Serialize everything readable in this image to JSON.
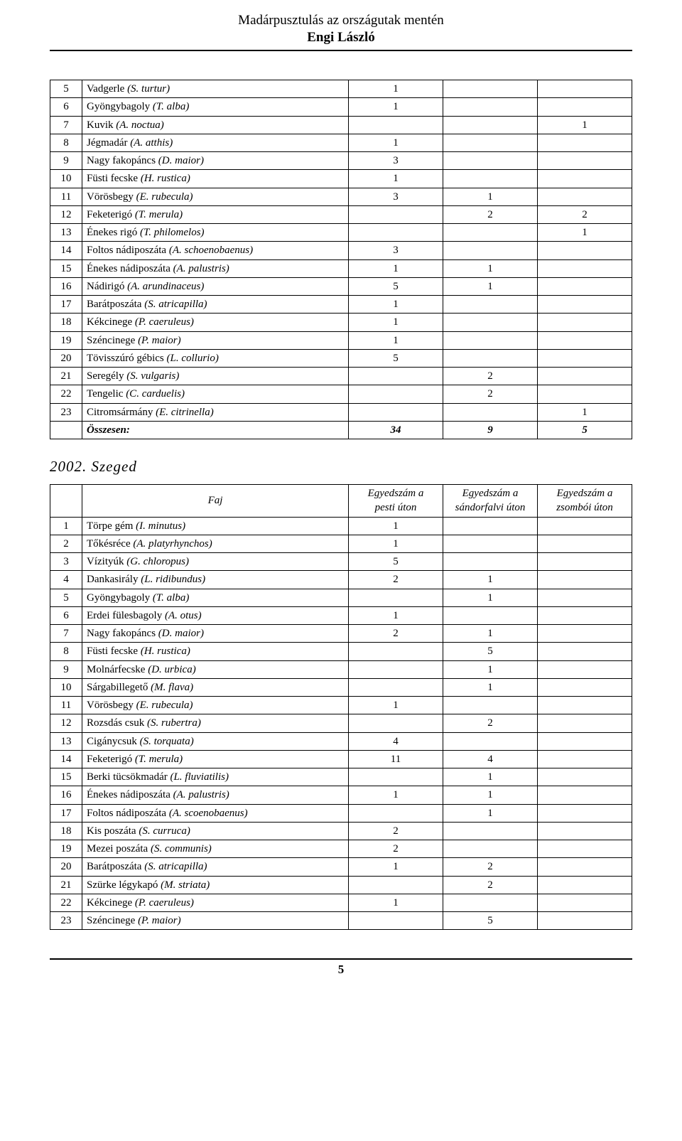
{
  "header": {
    "title": "Madárpusztulás az országutak mentén",
    "author": "Engi László"
  },
  "table1": {
    "rows": [
      {
        "n": "5",
        "name_plain": "Vadgerle ",
        "name_italic": "(S. turtur)",
        "c1": "1",
        "c2": "",
        "c3": ""
      },
      {
        "n": "6",
        "name_plain": "Gyöngybagoly ",
        "name_italic": "(T. alba)",
        "c1": "1",
        "c2": "",
        "c3": ""
      },
      {
        "n": "7",
        "name_plain": "Kuvik ",
        "name_italic": "(A. noctua)",
        "c1": "",
        "c2": "",
        "c3": "1"
      },
      {
        "n": "8",
        "name_plain": "Jégmadár ",
        "name_italic": "(A. atthis)",
        "c1": "1",
        "c2": "",
        "c3": ""
      },
      {
        "n": "9",
        "name_plain": "Nagy fakopáncs ",
        "name_italic": "(D. maior)",
        "c1": "3",
        "c2": "",
        "c3": ""
      },
      {
        "n": "10",
        "name_plain": "Füsti fecske ",
        "name_italic": "(H. rustica)",
        "c1": "1",
        "c2": "",
        "c3": ""
      },
      {
        "n": "11",
        "name_plain": "Vörösbegy ",
        "name_italic": "(E. rubecula)",
        "c1": "3",
        "c2": "1",
        "c3": ""
      },
      {
        "n": "12",
        "name_plain": "Feketerigó ",
        "name_italic": "(T. merula)",
        "c1": "",
        "c2": "2",
        "c3": "2"
      },
      {
        "n": "13",
        "name_plain": "Énekes rigó ",
        "name_italic": "(T. philomelos)",
        "c1": "",
        "c2": "",
        "c3": "1"
      },
      {
        "n": "14",
        "name_plain": "Foltos nádiposzáta ",
        "name_italic": "(A. schoenobaenus)",
        "c1": "3",
        "c2": "",
        "c3": ""
      },
      {
        "n": "15",
        "name_plain": "Énekes nádiposzáta ",
        "name_italic": "(A. palustris)",
        "c1": "1",
        "c2": "1",
        "c3": ""
      },
      {
        "n": "16",
        "name_plain": "Nádirigó ",
        "name_italic": "(A. arundinaceus)",
        "c1": "5",
        "c2": "1",
        "c3": ""
      },
      {
        "n": "17",
        "name_plain": "Barátposzáta ",
        "name_italic": "(S. atricapilla)",
        "c1": "1",
        "c2": "",
        "c3": ""
      },
      {
        "n": "18",
        "name_plain": "Kékcinege ",
        "name_italic": "(P. caeruleus)",
        "c1": "1",
        "c2": "",
        "c3": ""
      },
      {
        "n": "19",
        "name_plain": "Széncinege ",
        "name_italic": "(P. maior)",
        "c1": "1",
        "c2": "",
        "c3": ""
      },
      {
        "n": "20",
        "name_plain": "Tövisszúró gébics ",
        "name_italic": "(L. collurio)",
        "c1": "5",
        "c2": "",
        "c3": ""
      },
      {
        "n": "21",
        "name_plain": "Seregély ",
        "name_italic": "(S. vulgaris)",
        "c1": "",
        "c2": "2",
        "c3": ""
      },
      {
        "n": "22",
        "name_plain": "Tengelic ",
        "name_italic": "(C. carduelis)",
        "c1": "",
        "c2": "2",
        "c3": ""
      },
      {
        "n": "23",
        "name_plain": "Citromsármány ",
        "name_italic": "(E. citrinella)",
        "c1": "",
        "c2": "",
        "c3": "1"
      }
    ],
    "total": {
      "label": "Összesen:",
      "c1": "34",
      "c2": "9",
      "c3": "5"
    }
  },
  "section2": {
    "heading": "2002. Szeged",
    "columns": {
      "faj": "Faj",
      "h1a": "Egyedszám a",
      "h1b": "pesti úton",
      "h2a": "Egyedszám a",
      "h2b": "sándorfalvi úton",
      "h3a": "Egyedszám a",
      "h3b": "zsombói úton"
    },
    "rows": [
      {
        "n": "1",
        "name_plain": "Törpe gém ",
        "name_italic": "(I. minutus)",
        "c1": "1",
        "c2": "",
        "c3": ""
      },
      {
        "n": "2",
        "name_plain": "Tőkésréce ",
        "name_italic": "(A. platyrhynchos)",
        "c1": "1",
        "c2": "",
        "c3": ""
      },
      {
        "n": "3",
        "name_plain": "Vízityúk ",
        "name_italic": "(G. chloropus)",
        "c1": "5",
        "c2": "",
        "c3": ""
      },
      {
        "n": "4",
        "name_plain": "Dankasirály ",
        "name_italic": "(L. ridibundus)",
        "c1": "2",
        "c2": "1",
        "c3": ""
      },
      {
        "n": "5",
        "name_plain": "Gyöngybagoly ",
        "name_italic": "(T. alba)",
        "c1": "",
        "c2": "1",
        "c3": ""
      },
      {
        "n": "6",
        "name_plain": "Erdei fülesbagoly ",
        "name_italic": "(A. otus)",
        "c1": "1",
        "c2": "",
        "c3": ""
      },
      {
        "n": "7",
        "name_plain": "Nagy fakopáncs ",
        "name_italic": "(D. maior)",
        "c1": "2",
        "c2": "1",
        "c3": ""
      },
      {
        "n": "8",
        "name_plain": "Füsti fecske ",
        "name_italic": "(H. rustica)",
        "c1": "",
        "c2": "5",
        "c3": ""
      },
      {
        "n": "9",
        "name_plain": "Molnárfecske ",
        "name_italic": "(D. urbica)",
        "c1": "",
        "c2": "1",
        "c3": ""
      },
      {
        "n": "10",
        "name_plain": "Sárgabillegető ",
        "name_italic": "(M. flava)",
        "c1": "",
        "c2": "1",
        "c3": ""
      },
      {
        "n": "11",
        "name_plain": "Vörösbegy ",
        "name_italic": "(E. rubecula)",
        "c1": "1",
        "c2": "",
        "c3": ""
      },
      {
        "n": "12",
        "name_plain": "Rozsdás csuk ",
        "name_italic": "(S. rubertra)",
        "c1": "",
        "c2": "2",
        "c3": ""
      },
      {
        "n": "13",
        "name_plain": "Cigánycsuk ",
        "name_italic": "(S. torquata)",
        "c1": "4",
        "c2": "",
        "c3": ""
      },
      {
        "n": "14",
        "name_plain": "Feketerigó ",
        "name_italic": "(T. merula)",
        "c1": "11",
        "c2": "4",
        "c3": ""
      },
      {
        "n": "15",
        "name_plain": "Berki tücsökmadár ",
        "name_italic": "(L. fluviatilis)",
        "c1": "",
        "c2": "1",
        "c3": ""
      },
      {
        "n": "16",
        "name_plain": "Énekes nádiposzáta ",
        "name_italic": "(A. palustris)",
        "c1": "1",
        "c2": "1",
        "c3": ""
      },
      {
        "n": "17",
        "name_plain": "Foltos nádiposzáta ",
        "name_italic": "(A. scoenobaenus)",
        "c1": "",
        "c2": "1",
        "c3": ""
      },
      {
        "n": "18",
        "name_plain": "Kis poszáta ",
        "name_italic": "(S. curruca)",
        "c1": "2",
        "c2": "",
        "c3": ""
      },
      {
        "n": "19",
        "name_plain": "Mezei poszáta ",
        "name_italic": "(S. communis)",
        "c1": "2",
        "c2": "",
        "c3": ""
      },
      {
        "n": "20",
        "name_plain": "Barátposzáta ",
        "name_italic": "(S. atricapilla)",
        "c1": "1",
        "c2": "2",
        "c3": ""
      },
      {
        "n": "21",
        "name_plain": "Szürke légykapó ",
        "name_italic": "(M. striata)",
        "c1": "",
        "c2": "2",
        "c3": ""
      },
      {
        "n": "22",
        "name_plain": "Kékcinege ",
        "name_italic": "(P. caeruleus)",
        "c1": "1",
        "c2": "",
        "c3": ""
      },
      {
        "n": "23",
        "name_plain": "Széncinege ",
        "name_italic": "(P. maior)",
        "c1": "",
        "c2": "5",
        "c3": ""
      }
    ]
  },
  "footer": {
    "page": "5"
  }
}
